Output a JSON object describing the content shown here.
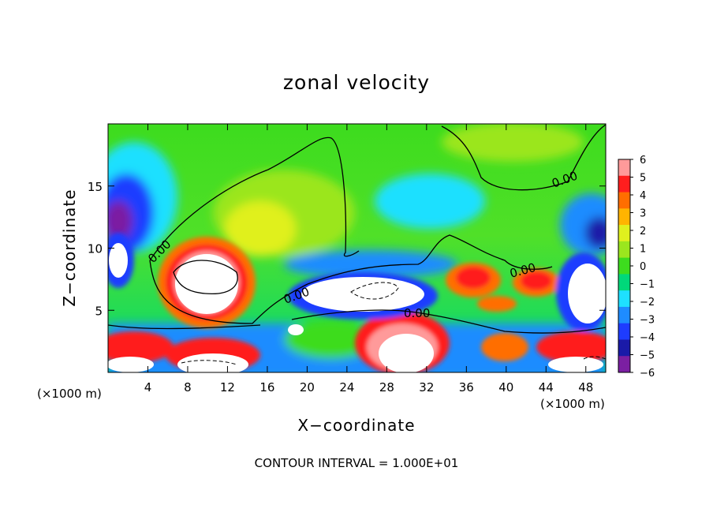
{
  "chart_data": {
    "type": "heatmap",
    "title": "zonal velocity",
    "xlabel": "X−coordinate",
    "ylabel": "Z−coordinate",
    "x_unit_left": "(×1000 m)",
    "x_unit_right": "(×1000 m)",
    "xlim": [
      0,
      50
    ],
    "ylim": [
      0,
      20
    ],
    "x_ticks": [
      "4",
      "8",
      "12",
      "16",
      "20",
      "24",
      "28",
      "32",
      "36",
      "40",
      "44",
      "48"
    ],
    "y_ticks": [
      "5",
      "10",
      "15"
    ],
    "contour_interval_text": "CONTOUR INTERVAL = 1.000E+01",
    "contour_labels": [
      "0.00",
      "0.00",
      "0.00",
      "0.00",
      "0.00"
    ],
    "colorbar": {
      "range": [
        -6,
        6
      ],
      "ticks": [
        "6",
        "5",
        "4",
        "3",
        "2",
        "1",
        "0",
        "−1",
        "−2",
        "−3",
        "−4",
        "−5",
        "−6"
      ]
    },
    "colors": {
      "neg6": "#7b1fa2",
      "neg5": "#1a1aa8",
      "neg4": "#1e3cff",
      "neg3": "#1e8cff",
      "neg2": "#1ee0ff",
      "neg1": "#00d87a",
      "zero": "#3ddc1e",
      "pos1": "#9be61e",
      "pos2": "#e0f01e",
      "pos3": "#ffb400",
      "pos4": "#ff6e00",
      "pos5": "#ff1e1e",
      "pos6": "#ff9a9a",
      "saturated": "#ffffff"
    }
  }
}
